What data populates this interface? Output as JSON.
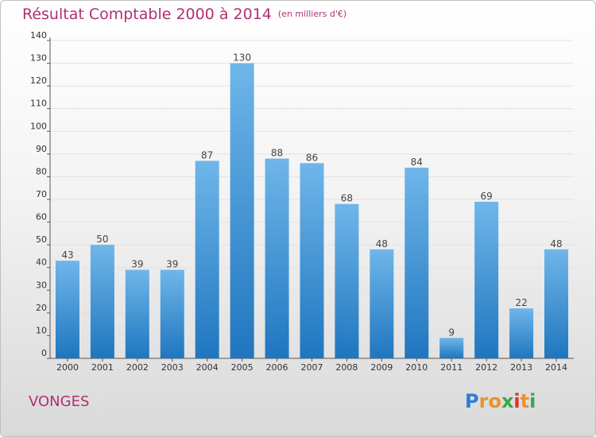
{
  "chart_data": {
    "type": "bar",
    "title": "Résultat Comptable 2000 à 2014",
    "subtitle": "(en milliers d'€)",
    "categories": [
      "2000",
      "2001",
      "2002",
      "2003",
      "2004",
      "2005",
      "2006",
      "2007",
      "2008",
      "2009",
      "2010",
      "2011",
      "2012",
      "2013",
      "2014"
    ],
    "values": [
      43,
      50,
      39,
      39,
      87,
      130,
      88,
      86,
      68,
      48,
      84,
      9,
      69,
      22,
      48
    ],
    "ylim": [
      0,
      140
    ],
    "yticks": [
      0,
      10,
      20,
      30,
      40,
      50,
      60,
      70,
      80,
      90,
      100,
      110,
      120,
      130,
      140
    ],
    "xlabel": "",
    "ylabel": "",
    "grid": true
  },
  "location": "VONGES",
  "brand": {
    "letters": [
      "P",
      "r",
      "o",
      "x",
      "i",
      "t",
      "i"
    ],
    "colors": [
      "#2a7fd4",
      "#e8942a",
      "#e8942a",
      "#3aa84a",
      "#e03030",
      "#e8942a",
      "#3aa84a"
    ]
  },
  "colors": {
    "title": "#b03070",
    "bar_top": "#6fb6ea",
    "bar_bottom": "#1f76bf"
  }
}
